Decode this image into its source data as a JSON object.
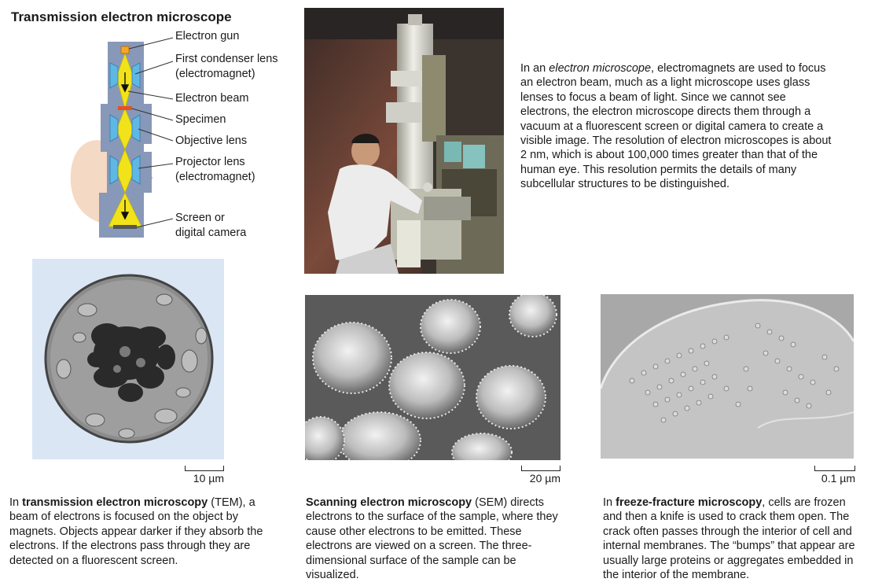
{
  "diagram": {
    "title": "Transmission electron microscope",
    "labels": {
      "electron_gun": "Electron gun",
      "first_condenser_lens_1": "First condenser lens",
      "first_condenser_lens_2": "(electromagnet)",
      "electron_beam": "Electron beam",
      "specimen": "Specimen",
      "objective_lens": "Objective lens",
      "projector_lens_1": "Projector lens",
      "projector_lens_2": "(electromagnet)",
      "screen_1": "Screen or",
      "screen_2": "digital camera"
    },
    "colors": {
      "body": "#8898b8",
      "lens": "#5fb7e4",
      "beam": "#f2e21a",
      "beam_edge": "#c8b800",
      "specimen": "#e8501e"
    }
  },
  "intro": {
    "prefix": "In an ",
    "italic": "electron microscope",
    "rest": ", electromagnets are used to focus an electron beam, much as a light microscope uses glass lenses to focus a beam of light. Since we cannot see electrons, the electron microscope directs them through a vacuum at a fluorescent screen or digital camera to create a visible image. The resolution of electron microscopes is about 2 nm, which is about 100,000 times greater than that of the human eye. This resolution permits the details of many subcellular structures to be distinguished."
  },
  "panels": {
    "tem": {
      "scale": "10 µm",
      "cap_prefix": "In ",
      "cap_bold": "transmission electron microscopy",
      "cap_rest": " (TEM), a beam of electrons is focused on the object by magnets. Objects appear darker if they absorb the electrons. If the electrons pass through they are detected on a fluorescent screen."
    },
    "sem": {
      "scale": "20 µm",
      "cap_prefix": "",
      "cap_bold": "Scanning electron microscopy",
      "cap_rest": " (SEM) directs electrons to the surface of the sample, where they cause other electrons to be emitted. These electrons are viewed on a screen. The three-dimensional surface of the sample can be visualized."
    },
    "ff": {
      "scale": "0.1 µm",
      "cap_prefix": "In ",
      "cap_bold": "freeze-fracture microscopy",
      "cap_rest": ", cells are frozen and then a knife is used to crack them open. The crack often passes through the interior of cell and internal membranes. The “bumps” that appear are usually large proteins or aggregates embedded in the interior of the membrane."
    }
  }
}
